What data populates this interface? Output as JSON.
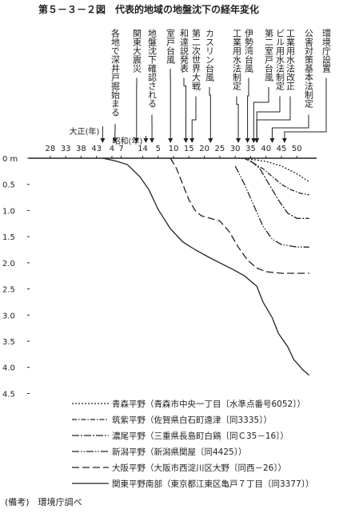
{
  "chart_data": {
    "type": "line",
    "title": "第５－３－２図　代表的地域の地盤沈下の経年変化",
    "note": "(備考)　環境庁調べ",
    "xlim": [
      1887,
      1984
    ],
    "xticks": [
      {
        "value": 1895,
        "label": "28"
      },
      {
        "value": 1900,
        "label": "33"
      },
      {
        "value": 1905,
        "label": "38"
      },
      {
        "value": 1910,
        "label": "43"
      },
      {
        "value": 1915,
        "label": "4"
      },
      {
        "value": 1918,
        "label": "7"
      },
      {
        "value": 1925,
        "label": "14"
      },
      {
        "value": 1930,
        "label": "5"
      },
      {
        "value": 1935,
        "label": "10"
      },
      {
        "value": 1940,
        "label": "15"
      },
      {
        "value": 1945,
        "label": "20"
      },
      {
        "value": 1950,
        "label": "25"
      },
      {
        "value": 1955,
        "label": "30"
      },
      {
        "value": 1960,
        "label": "35"
      },
      {
        "value": 1965,
        "label": "40"
      },
      {
        "value": 1970,
        "label": "45"
      },
      {
        "value": 1975,
        "label": "50"
      }
    ],
    "ylim": [
      0,
      4.6
    ],
    "yticks": [
      {
        "value": 0,
        "label": "0 m"
      },
      0.5,
      {
        "value": 1,
        "label": "1.0"
      },
      1.5,
      {
        "value": 2,
        "label": "2.0"
      },
      2.5,
      {
        "value": 3,
        "label": "3.0"
      },
      3.5,
      {
        "value": 4,
        "label": "4.0"
      },
      4.5
    ],
    "y_inverted": true,
    "grid": false,
    "era_labels": [
      {
        "text": "大正(年)",
        "x": 1912
      },
      {
        "text": "昭和(年)",
        "x": 1926
      }
    ],
    "annotations": [
      {
        "text": "各地で深井戸掘始まる",
        "x": 1916
      },
      {
        "text": "関東大震災",
        "x": 1923
      },
      {
        "text": "地盤沈下確認される",
        "x": 1928
      },
      {
        "text": "室戸台風",
        "x": 1934
      },
      {
        "text": "和達説発表",
        "x": 1939
      },
      {
        "text": "第二次世界大戦",
        "x": 1941
      },
      {
        "text": "カスリン台風",
        "x": 1947
      },
      {
        "text": "工業用水法制定",
        "x": 1956
      },
      {
        "text": "伊勢湾台風",
        "x": 1959
      },
      {
        "text": "第二室戸台風",
        "x": 1961
      },
      {
        "text": "ビル用水法制定",
        "x": 1962
      },
      {
        "text": "工業用水法改正",
        "x": 1962
      },
      {
        "text": "公害対策基本法制定",
        "x": 1967
      },
      {
        "text": "環境庁設置",
        "x": 1971
      }
    ],
    "series": [
      {
        "name": "青森平野（青森市中央一丁目〔水準点番号6052〕）",
        "color": "#222222",
        "dash": "2,2",
        "x": [
          1956,
          1960,
          1965,
          1970,
          1975,
          1979
        ],
        "values": [
          0,
          0.02,
          0.06,
          0.15,
          0.3,
          0.45
        ]
      },
      {
        "name": "筑紫平野（佐賀県白石町遠津〔同3335〕）",
        "color": "#222222",
        "dash": "6,2,1.5,2",
        "x": [
          1958,
          1961,
          1964,
          1967,
          1970,
          1973,
          1976,
          1979
        ],
        "values": [
          0,
          0.1,
          0.2,
          0.35,
          0.5,
          0.6,
          0.67,
          0.7
        ]
      },
      {
        "name": "濃尾平野（三重県長島町白鶏〔同Ｃ35－16〕）",
        "color": "#222222",
        "dash": "9,2,2,2",
        "x": [
          1960,
          1963,
          1966,
          1969,
          1972,
          1975,
          1979
        ],
        "values": [
          0.05,
          0.2,
          0.5,
          0.8,
          1.05,
          1.15,
          1.15
        ]
      },
      {
        "name": "新潟平野（新潟県関屋〔同4425〕）",
        "color": "#222222",
        "dash": "9,2,1.5,2,1.5,2",
        "x": [
          1955,
          1958,
          1961,
          1964,
          1967,
          1970,
          1975,
          1979
        ],
        "values": [
          0.15,
          0.5,
          0.9,
          1.3,
          1.55,
          1.65,
          1.7,
          1.7
        ]
      },
      {
        "name": "大阪平野（大阪市西淀川区大野〔同西－26〕）",
        "color": "#222222",
        "dash": "9,4",
        "x": [
          1934,
          1936,
          1938,
          1940,
          1942,
          1944,
          1947,
          1950,
          1953,
          1956,
          1959,
          1962,
          1965,
          1970,
          1979
        ],
        "values": [
          0,
          0.2,
          0.5,
          0.8,
          1.0,
          1.1,
          1.15,
          1.2,
          1.4,
          1.7,
          1.95,
          2.1,
          2.17,
          2.2,
          2.2
        ]
      },
      {
        "name": "関東平野南部（東京都江東区亀戸７丁目〔同3377〕）",
        "color": "#222222",
        "dash": "none",
        "x": [
          1912,
          1916,
          1920,
          1924,
          1927,
          1930,
          1934,
          1938,
          1942,
          1946,
          1950,
          1954,
          1958,
          1962,
          1964,
          1967,
          1969,
          1972,
          1974,
          1977,
          1979
        ],
        "values": [
          0,
          0.05,
          0.12,
          0.35,
          0.6,
          0.98,
          1.35,
          1.6,
          1.75,
          1.88,
          2.0,
          2.12,
          2.25,
          2.45,
          2.75,
          3.05,
          3.35,
          3.6,
          3.85,
          4.05,
          4.15
        ]
      }
    ]
  }
}
